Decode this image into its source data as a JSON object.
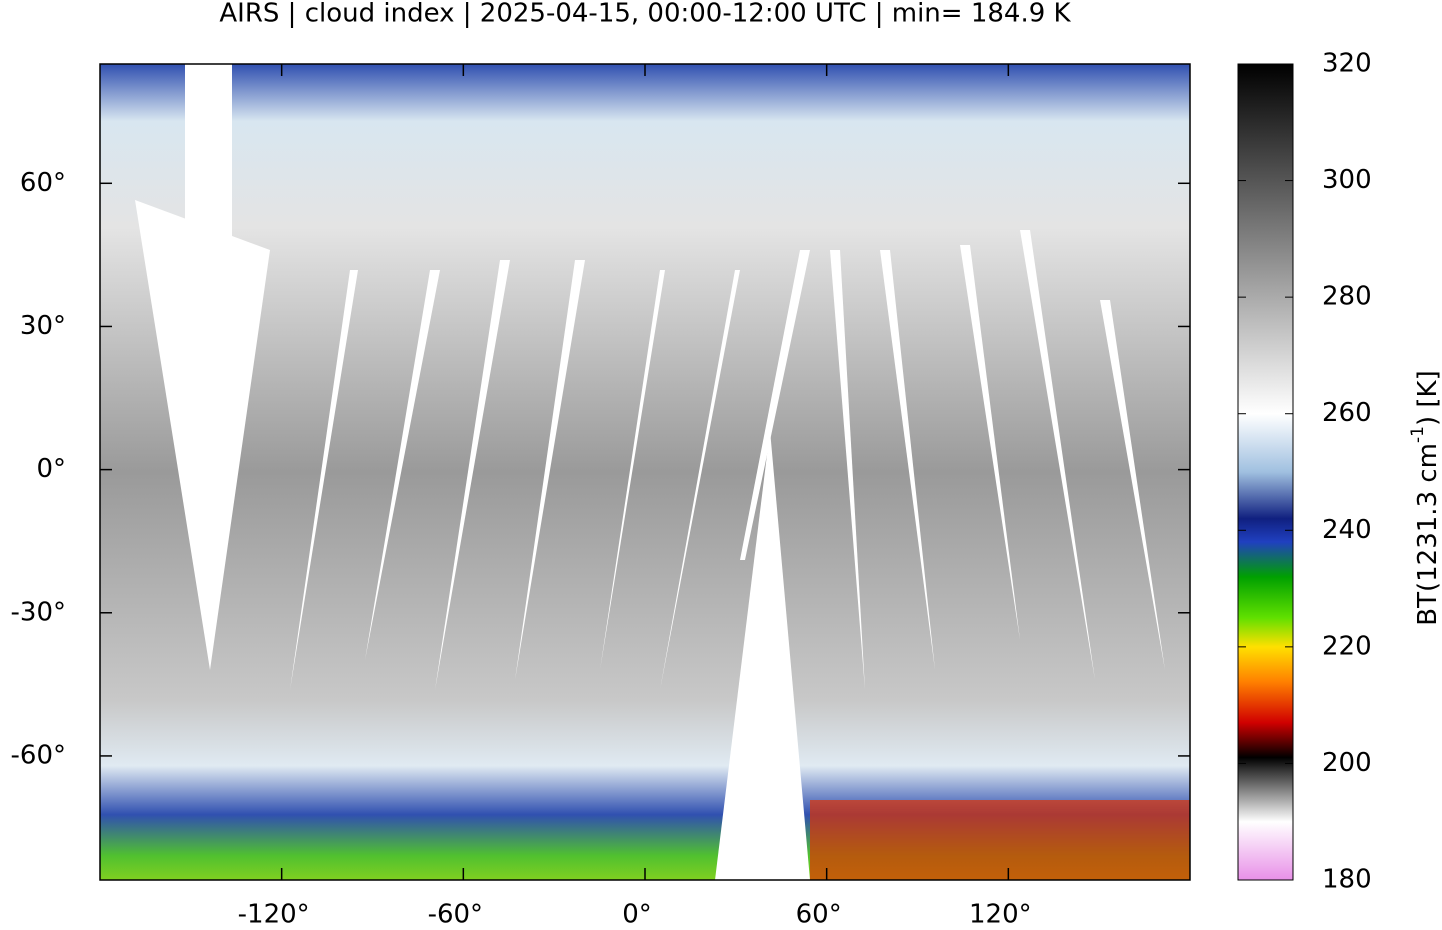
{
  "chart_data": {
    "type": "map",
    "title": "AIRS | cloud index | 2025-04-15, 00:00-12:00 UTC | min= 184.9 K",
    "xlim": [
      -180,
      180
    ],
    "ylim": [
      -86,
      85
    ],
    "xticks": [
      {
        "value": -120,
        "label": "-120°"
      },
      {
        "value": -60,
        "label": "-60°"
      },
      {
        "value": 0,
        "label": "0°"
      },
      {
        "value": 60,
        "label": "60°"
      },
      {
        "value": 120,
        "label": "120°"
      }
    ],
    "yticks": [
      {
        "value": -60,
        "label": "-60°"
      },
      {
        "value": -30,
        "label": "-30°"
      },
      {
        "value": 0,
        "label": "0°"
      },
      {
        "value": 30,
        "label": "30°"
      },
      {
        "value": 60,
        "label": "60°"
      }
    ],
    "colorbar": {
      "label": {
        "text": "BT(1231.3 cm",
        "sup": "-1",
        "suffix": ") [K]"
      },
      "lim": [
        180,
        320
      ],
      "ticks": [
        180,
        200,
        220,
        240,
        260,
        280,
        300,
        320
      ],
      "colormap": [
        {
          "value": 180,
          "color": "#e890e8"
        },
        {
          "value": 190,
          "color": "#ffffff"
        },
        {
          "value": 199,
          "color": "#303030"
        },
        {
          "value": 201,
          "color": "#000000"
        },
        {
          "value": 207,
          "color": "#d00000"
        },
        {
          "value": 214,
          "color": "#ff8000"
        },
        {
          "value": 220,
          "color": "#ffe000"
        },
        {
          "value": 225,
          "color": "#60e000"
        },
        {
          "value": 232,
          "color": "#00a000"
        },
        {
          "value": 238,
          "color": "#2040c0"
        },
        {
          "value": 242,
          "color": "#102080"
        },
        {
          "value": 250,
          "color": "#a0c0e0"
        },
        {
          "value": 260,
          "color": "#ffffff"
        },
        {
          "value": 290,
          "color": "#808080"
        },
        {
          "value": 320,
          "color": "#000000"
        }
      ]
    }
  }
}
